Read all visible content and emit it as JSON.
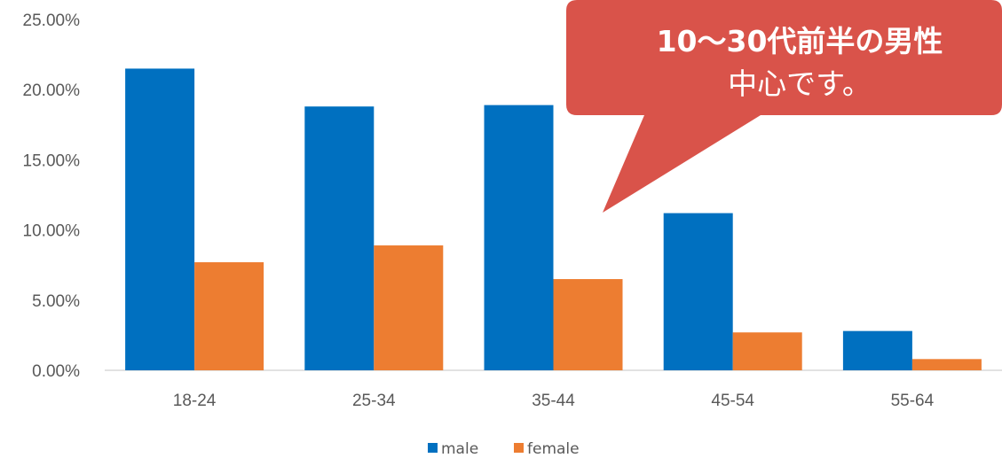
{
  "chart_data": {
    "type": "bar",
    "categories": [
      "18-24",
      "25-34",
      "35-44",
      "45-54",
      "55-64"
    ],
    "series": [
      {
        "name": "male",
        "values": [
          21.5,
          18.8,
          18.9,
          11.2,
          2.8
        ],
        "color": "#0070c0"
      },
      {
        "name": "female",
        "values": [
          7.7,
          8.9,
          6.5,
          2.7,
          0.8
        ],
        "color": "#ed7d31"
      }
    ],
    "yticks": [
      "0.00%",
      "5.00%",
      "10.00%",
      "15.00%",
      "20.00%",
      "25.00%"
    ],
    "ylim": [
      0,
      25
    ],
    "grid": false,
    "legend_position": "bottom-center"
  },
  "callout": {
    "title": "10～30代前半の男性",
    "subtitle": "中心です。",
    "color": "#d9534a"
  }
}
